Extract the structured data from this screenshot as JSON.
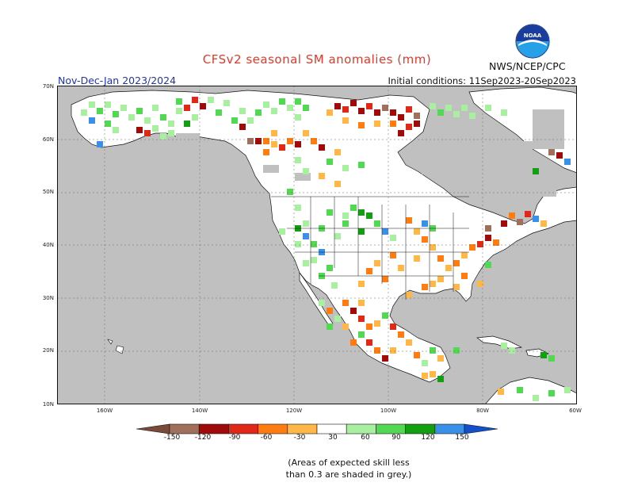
{
  "title": "CFSv2 seasonal SM anomalies (mm)",
  "period": "Nov-Dec-Jan 2023/2024",
  "initial_conditions": "Initial conditions: 11Sep2023-20Sep2023",
  "organization": "NWS/NCEP/CPC",
  "logo_text": "NOAA",
  "lat_labels": [
    "70N",
    "60N",
    "50N",
    "40N",
    "30N",
    "20N",
    "10N"
  ],
  "lon_labels": [
    "160W",
    "140W",
    "120W",
    "100W",
    "80W",
    "60W"
  ],
  "colorbar": {
    "tick_labels": [
      "-150",
      "-120",
      "-90",
      "-60",
      "-30",
      "30",
      "60",
      "90",
      "120",
      "150"
    ],
    "bins": [
      {
        "range": "< -150",
        "color": "#7a4a3a"
      },
      {
        "range": "-150 to -120",
        "color": "#a0705c"
      },
      {
        "range": "-120 to -90",
        "color": "#a00a0a"
      },
      {
        "range": "-90 to -60",
        "color": "#e02818"
      },
      {
        "range": "-60 to -30",
        "color": "#ff7d10"
      },
      {
        "range": "-30 to -30",
        "color": "#ffb848"
      },
      {
        "range": "-30 to 30",
        "color": "#ffffff"
      },
      {
        "range": "30 to 60",
        "color": "#a8f0a0"
      },
      {
        "range": "60 to 90",
        "color": "#52d852"
      },
      {
        "range": "90 to 120",
        "color": "#12a012"
      },
      {
        "range": "120 to 150",
        "color": "#3890e8"
      },
      {
        "range": "> 150",
        "color": "#1450c8"
      }
    ]
  },
  "note": [
    "(Areas of expected skill less",
    "than 0.3 are shaded in grey.)"
  ],
  "colors": {
    "land_no_skill": "#c0c0c0",
    "land_white": "#ffffff",
    "ocean": "#c0c0c0",
    "title": "#e03a2a",
    "period": "#2233aa"
  }
}
